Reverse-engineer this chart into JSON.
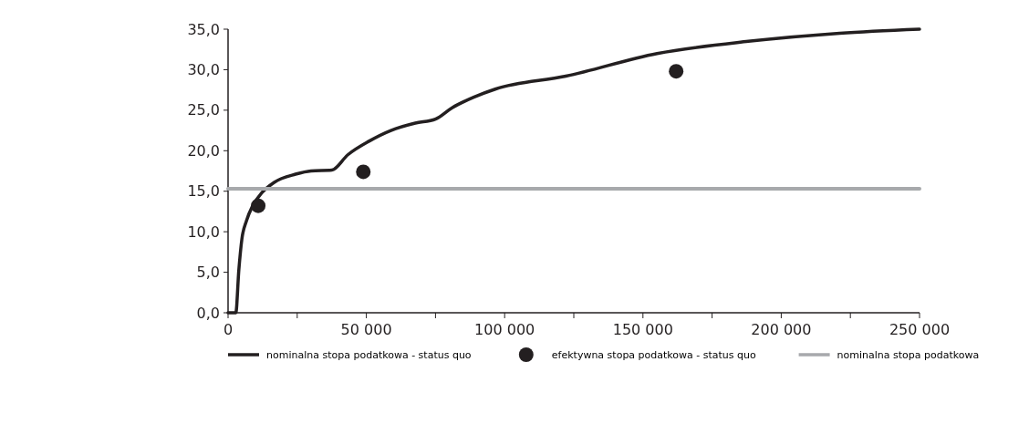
{
  "chart_data": {
    "type": "line",
    "xlim": [
      0,
      250000
    ],
    "ylim": [
      0,
      35
    ],
    "xticks": [
      {
        "value": 0,
        "label": "0"
      },
      {
        "value": 25000,
        "label": null
      },
      {
        "value": 50000,
        "label": "50 000"
      },
      {
        "value": 75000,
        "label": null
      },
      {
        "value": 100000,
        "label": "100 000"
      },
      {
        "value": 125000,
        "label": null
      },
      {
        "value": 150000,
        "label": "150 000"
      },
      {
        "value": 175000,
        "label": null
      },
      {
        "value": 200000,
        "label": "200 000"
      },
      {
        "value": 225000,
        "label": null
      },
      {
        "value": 250000,
        "label": "250 000"
      }
    ],
    "yticks": [
      {
        "value": 0,
        "label": "0,0"
      },
      {
        "value": 5,
        "label": "5,0"
      },
      {
        "value": 10,
        "label": "10,0"
      },
      {
        "value": 15,
        "label": "15,0"
      },
      {
        "value": 20,
        "label": "20,0"
      },
      {
        "value": 25,
        "label": "25,0"
      },
      {
        "value": 30,
        "label": "30,0"
      },
      {
        "value": 35,
        "label": "35,0"
      }
    ],
    "grid": false,
    "legend": "bottom",
    "series": [
      {
        "name": "nominalna stopa podatkowa - status quo",
        "color": "#231f20",
        "x": [
          0,
          2800,
          3900,
          5000,
          6700,
          8900,
          12200,
          16700,
          24400,
          30000,
          37500,
          43300,
          51100,
          58900,
          67700,
          75000,
          81000,
          88800,
          96600,
          122100,
          155100,
          188100,
          221100,
          250000
        ],
        "values": [
          0,
          0,
          5.3,
          9.1,
          11.4,
          13.2,
          14.8,
          16.1,
          17.1,
          17.5,
          17.6,
          19.5,
          21.2,
          22.5,
          23.4,
          23.9,
          25.3,
          26.6,
          27.6,
          29.2,
          32.0,
          33.5,
          34.5,
          35.0
        ]
      },
      {
        "name": "efektywna stopa podatkowa - status quo",
        "type": "scatter",
        "marker": "circle",
        "color": "#231f20",
        "x": [
          10900,
          48900,
          162000
        ],
        "values": [
          13.2,
          17.4,
          29.8
        ]
      },
      {
        "name": "nominalna stopa podatkowa",
        "color": "#a7a9ac",
        "x": [
          0,
          250000
        ],
        "values": [
          15.3,
          15.3
        ]
      }
    ]
  }
}
